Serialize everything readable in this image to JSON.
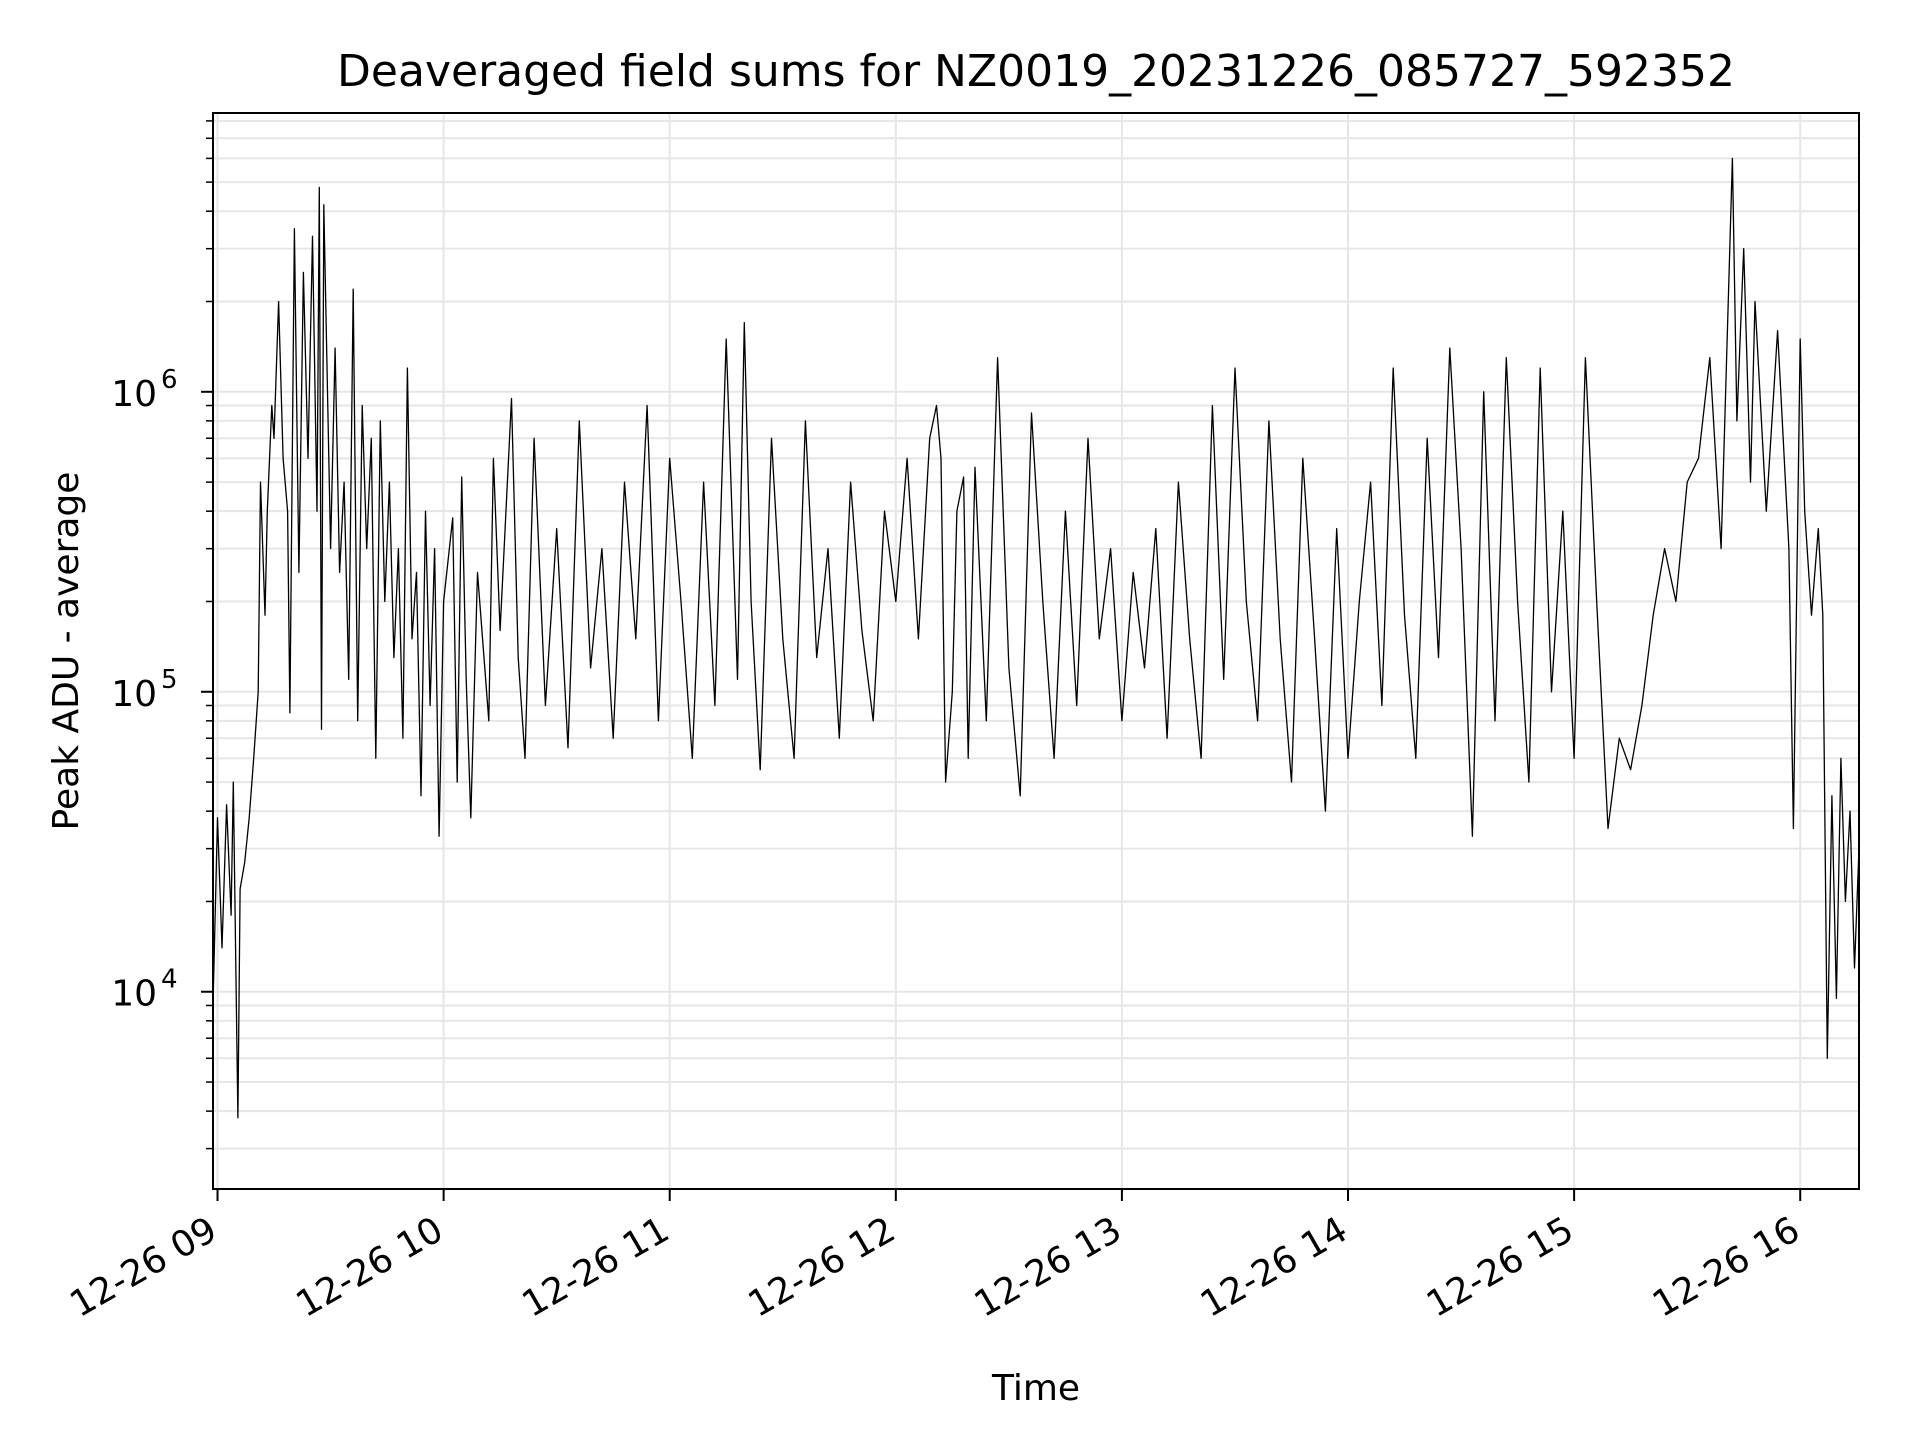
{
  "chart_data": {
    "type": "line",
    "title": "Deaveraged field sums for NZ0019_20231226_085727_592352",
    "xlabel": "Time",
    "ylabel": "Peak ADU - average",
    "yscale": "log",
    "xlim_hours": [
      8.98,
      16.26
    ],
    "ylim": [
      2200,
      8500000
    ],
    "x_ticks": [
      {
        "label": "12-26 09",
        "hour": 9
      },
      {
        "label": "12-26 10",
        "hour": 10
      },
      {
        "label": "12-26 11",
        "hour": 11
      },
      {
        "label": "12-26 12",
        "hour": 12
      },
      {
        "label": "12-26 13",
        "hour": 13
      },
      {
        "label": "12-26 14",
        "hour": 14
      },
      {
        "label": "12-26 15",
        "hour": 15
      },
      {
        "label": "12-26 16",
        "hour": 16
      }
    ],
    "y_ticks": [
      {
        "base": "10",
        "exp": "4",
        "value": 10000
      },
      {
        "base": "10",
        "exp": "5",
        "value": 100000
      },
      {
        "base": "10",
        "exp": "6",
        "value": 1000000
      }
    ],
    "grid": true,
    "line_color": "#000000",
    "series": [
      {
        "name": "Peak ADU - average",
        "points": [
          [
            8.98,
            9000
          ],
          [
            9.0,
            38000
          ],
          [
            9.02,
            14000
          ],
          [
            9.04,
            42000
          ],
          [
            9.06,
            18000
          ],
          [
            9.07,
            50000
          ],
          [
            9.09,
            3800
          ],
          [
            9.1,
            22000
          ],
          [
            9.12,
            27000
          ],
          [
            9.14,
            38000
          ],
          [
            9.16,
            60000
          ],
          [
            9.18,
            100000
          ],
          [
            9.19,
            500000
          ],
          [
            9.21,
            180000
          ],
          [
            9.22,
            400000
          ],
          [
            9.24,
            900000
          ],
          [
            9.25,
            700000
          ],
          [
            9.27,
            2000000
          ],
          [
            9.29,
            600000
          ],
          [
            9.31,
            400000
          ],
          [
            9.32,
            85000
          ],
          [
            9.34,
            3500000
          ],
          [
            9.36,
            250000
          ],
          [
            9.38,
            2500000
          ],
          [
            9.4,
            600000
          ],
          [
            9.42,
            3300000
          ],
          [
            9.44,
            400000
          ],
          [
            9.45,
            4800000
          ],
          [
            9.46,
            75000
          ],
          [
            9.47,
            4200000
          ],
          [
            9.5,
            300000
          ],
          [
            9.52,
            1400000
          ],
          [
            9.54,
            250000
          ],
          [
            9.56,
            500000
          ],
          [
            9.58,
            110000
          ],
          [
            9.6,
            2200000
          ],
          [
            9.62,
            80000
          ],
          [
            9.64,
            900000
          ],
          [
            9.66,
            300000
          ],
          [
            9.68,
            700000
          ],
          [
            9.7,
            60000
          ],
          [
            9.72,
            800000
          ],
          [
            9.74,
            200000
          ],
          [
            9.76,
            500000
          ],
          [
            9.78,
            130000
          ],
          [
            9.8,
            300000
          ],
          [
            9.82,
            70000
          ],
          [
            9.84,
            1200000
          ],
          [
            9.86,
            150000
          ],
          [
            9.88,
            250000
          ],
          [
            9.9,
            45000
          ],
          [
            9.92,
            400000
          ],
          [
            9.94,
            90000
          ],
          [
            9.96,
            300000
          ],
          [
            9.98,
            33000
          ],
          [
            10.0,
            200000
          ],
          [
            10.04,
            380000
          ],
          [
            10.06,
            50000
          ],
          [
            10.08,
            520000
          ],
          [
            10.1,
            110000
          ],
          [
            10.12,
            38000
          ],
          [
            10.15,
            250000
          ],
          [
            10.2,
            80000
          ],
          [
            10.22,
            600000
          ],
          [
            10.25,
            160000
          ],
          [
            10.3,
            950000
          ],
          [
            10.33,
            130000
          ],
          [
            10.36,
            60000
          ],
          [
            10.4,
            700000
          ],
          [
            10.45,
            90000
          ],
          [
            10.5,
            350000
          ],
          [
            10.55,
            65000
          ],
          [
            10.6,
            800000
          ],
          [
            10.65,
            120000
          ],
          [
            10.7,
            300000
          ],
          [
            10.75,
            70000
          ],
          [
            10.8,
            500000
          ],
          [
            10.85,
            150000
          ],
          [
            10.9,
            900000
          ],
          [
            10.95,
            80000
          ],
          [
            11.0,
            600000
          ],
          [
            11.05,
            200000
          ],
          [
            11.1,
            60000
          ],
          [
            11.15,
            500000
          ],
          [
            11.2,
            90000
          ],
          [
            11.25,
            1500000
          ],
          [
            11.3,
            110000
          ],
          [
            11.33,
            1700000
          ],
          [
            11.36,
            200000
          ],
          [
            11.4,
            55000
          ],
          [
            11.45,
            700000
          ],
          [
            11.5,
            150000
          ],
          [
            11.55,
            60000
          ],
          [
            11.6,
            800000
          ],
          [
            11.65,
            130000
          ],
          [
            11.7,
            300000
          ],
          [
            11.75,
            70000
          ],
          [
            11.8,
            500000
          ],
          [
            11.85,
            160000
          ],
          [
            11.9,
            80000
          ],
          [
            11.95,
            400000
          ],
          [
            12.0,
            200000
          ],
          [
            12.05,
            600000
          ],
          [
            12.1,
            150000
          ],
          [
            12.15,
            700000
          ],
          [
            12.18,
            900000
          ],
          [
            12.2,
            600000
          ],
          [
            12.22,
            50000
          ],
          [
            12.25,
            100000
          ],
          [
            12.27,
            400000
          ],
          [
            12.3,
            520000
          ],
          [
            12.32,
            60000
          ],
          [
            12.35,
            560000
          ],
          [
            12.4,
            80000
          ],
          [
            12.45,
            1300000
          ],
          [
            12.5,
            120000
          ],
          [
            12.55,
            45000
          ],
          [
            12.6,
            850000
          ],
          [
            12.65,
            200000
          ],
          [
            12.7,
            60000
          ],
          [
            12.75,
            400000
          ],
          [
            12.8,
            90000
          ],
          [
            12.85,
            700000
          ],
          [
            12.9,
            150000
          ],
          [
            12.95,
            300000
          ],
          [
            13.0,
            80000
          ],
          [
            13.05,
            250000
          ],
          [
            13.1,
            120000
          ],
          [
            13.15,
            350000
          ],
          [
            13.2,
            70000
          ],
          [
            13.25,
            500000
          ],
          [
            13.3,
            150000
          ],
          [
            13.35,
            60000
          ],
          [
            13.4,
            900000
          ],
          [
            13.45,
            110000
          ],
          [
            13.5,
            1200000
          ],
          [
            13.55,
            200000
          ],
          [
            13.6,
            80000
          ],
          [
            13.65,
            800000
          ],
          [
            13.7,
            150000
          ],
          [
            13.75,
            50000
          ],
          [
            13.8,
            600000
          ],
          [
            13.85,
            160000
          ],
          [
            13.9,
            40000
          ],
          [
            13.95,
            350000
          ],
          [
            14.0,
            60000
          ],
          [
            14.05,
            200000
          ],
          [
            14.1,
            500000
          ],
          [
            14.15,
            90000
          ],
          [
            14.2,
            1200000
          ],
          [
            14.25,
            180000
          ],
          [
            14.3,
            60000
          ],
          [
            14.35,
            700000
          ],
          [
            14.4,
            130000
          ],
          [
            14.45,
            1400000
          ],
          [
            14.5,
            300000
          ],
          [
            14.55,
            33000
          ],
          [
            14.6,
            1000000
          ],
          [
            14.65,
            80000
          ],
          [
            14.7,
            1300000
          ],
          [
            14.75,
            200000
          ],
          [
            14.8,
            50000
          ],
          [
            14.85,
            1200000
          ],
          [
            14.9,
            100000
          ],
          [
            14.95,
            400000
          ],
          [
            15.0,
            60000
          ],
          [
            15.05,
            1300000
          ],
          [
            15.1,
            200000
          ],
          [
            15.15,
            35000
          ],
          [
            15.2,
            70000
          ],
          [
            15.25,
            55000
          ],
          [
            15.3,
            90000
          ],
          [
            15.35,
            180000
          ],
          [
            15.4,
            300000
          ],
          [
            15.45,
            200000
          ],
          [
            15.5,
            500000
          ],
          [
            15.55,
            600000
          ],
          [
            15.6,
            1300000
          ],
          [
            15.65,
            300000
          ],
          [
            15.7,
            6000000
          ],
          [
            15.72,
            800000
          ],
          [
            15.75,
            3000000
          ],
          [
            15.78,
            500000
          ],
          [
            15.8,
            2000000
          ],
          [
            15.85,
            400000
          ],
          [
            15.9,
            1600000
          ],
          [
            15.95,
            300000
          ],
          [
            15.97,
            35000
          ],
          [
            16.0,
            1500000
          ],
          [
            16.02,
            400000
          ],
          [
            16.05,
            180000
          ],
          [
            16.08,
            350000
          ],
          [
            16.1,
            180000
          ],
          [
            16.12,
            6000
          ],
          [
            16.14,
            45000
          ],
          [
            16.16,
            9500
          ],
          [
            16.18,
            60000
          ],
          [
            16.2,
            20000
          ],
          [
            16.22,
            40000
          ],
          [
            16.24,
            12000
          ],
          [
            16.26,
            30000
          ]
        ]
      }
    ]
  }
}
